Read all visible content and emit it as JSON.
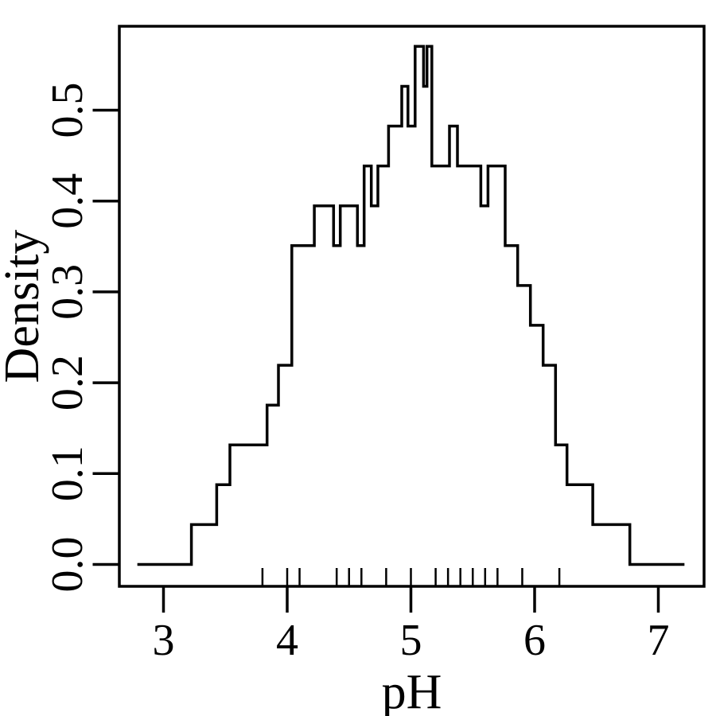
{
  "chart_data": {
    "type": "line",
    "variant": "histogram-step-outline",
    "title": "",
    "xlabel": "pH",
    "ylabel": "Density",
    "grid": false,
    "legend": "none",
    "background": "#ffffff",
    "line_color": "#000000",
    "xlim": [
      2.64,
      7.37
    ],
    "ylim": [
      -0.024,
      0.592
    ],
    "x_ticks": [
      3,
      4,
      5,
      6,
      7
    ],
    "x_tick_labels": [
      "3",
      "4",
      "5",
      "6",
      "7"
    ],
    "y_ticks": [
      0.0,
      0.1,
      0.2,
      0.3,
      0.4,
      0.5
    ],
    "y_tick_labels": [
      "0.0",
      "0.1",
      "0.2",
      "0.3",
      "0.4",
      "0.5"
    ],
    "steps_comment": "each entry = [pH at which this density level begins, density]; level holds until next entry; series ends at x_end",
    "steps": [
      [
        2.8,
        0
      ],
      [
        3.226,
        0.0439
      ],
      [
        3.43,
        0.0877
      ],
      [
        3.537,
        0.1316
      ],
      [
        3.837,
        0.1754
      ],
      [
        3.929,
        0.2193
      ],
      [
        4.037,
        0.3509
      ],
      [
        4.219,
        0.3947
      ],
      [
        4.375,
        0.3509
      ],
      [
        4.429,
        0.3947
      ],
      [
        4.568,
        0.3509
      ],
      [
        4.622,
        0.4386
      ],
      [
        4.68,
        0.3947
      ],
      [
        4.733,
        0.4386
      ],
      [
        4.819,
        0.4825
      ],
      [
        4.926,
        0.5263
      ],
      [
        4.976,
        0.4825
      ],
      [
        5.034,
        0.5702
      ],
      [
        5.102,
        0.5263
      ],
      [
        5.13,
        0.5702
      ],
      [
        5.169,
        0.4386
      ],
      [
        5.312,
        0.4825
      ],
      [
        5.376,
        0.4386
      ],
      [
        5.565,
        0.3947
      ],
      [
        5.623,
        0.4386
      ],
      [
        5.762,
        0.3509
      ],
      [
        5.863,
        0.307
      ],
      [
        5.966,
        0.2632
      ],
      [
        6.069,
        0.2193
      ],
      [
        6.169,
        0.1316
      ],
      [
        6.262,
        0.0877
      ],
      [
        6.47,
        0.0439
      ],
      [
        6.77,
        0
      ]
    ],
    "x_end": 7.2,
    "rug_points": [
      3.8,
      4.0,
      4.1,
      4.4,
      4.5,
      4.6,
      4.8,
      5.0,
      5.2,
      5.3,
      5.4,
      5.5,
      5.6,
      5.7,
      5.9,
      6.2
    ]
  }
}
